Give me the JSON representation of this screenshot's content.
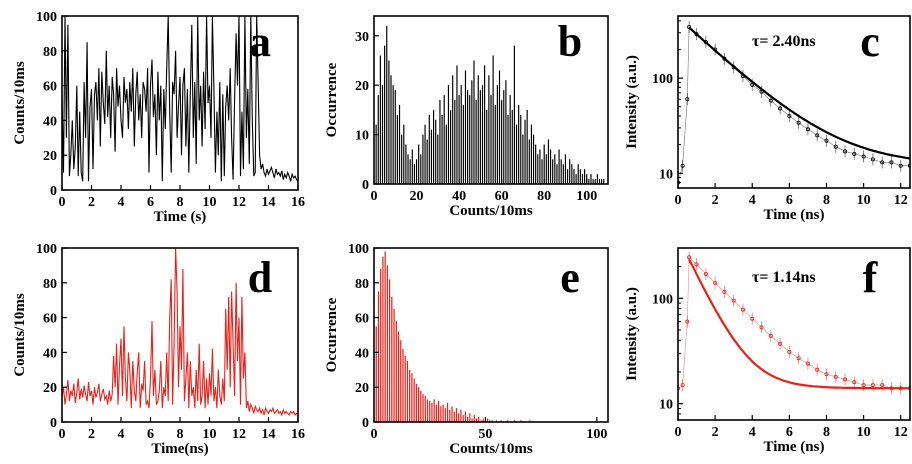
{
  "chart_data": [
    {
      "id": "a",
      "letter": "a",
      "type": "line",
      "color": "#000000",
      "xlabel": "Time (s)",
      "ylabel": "Counts/10ms",
      "xlim": [
        0,
        16
      ],
      "ylim": [
        0,
        100
      ],
      "xticks": [
        0,
        2,
        4,
        6,
        8,
        10,
        12,
        14,
        16
      ],
      "yticks": [
        0,
        20,
        40,
        60,
        80,
        100
      ],
      "x": [
        0,
        0.1,
        0.2,
        0.3,
        0.4,
        0.5,
        0.6,
        0.7,
        0.8,
        0.9,
        1.0,
        1.1,
        1.2,
        1.3,
        1.4,
        1.5,
        1.6,
        1.7,
        1.8,
        1.9,
        2.0,
        2.1,
        2.2,
        2.3,
        2.4,
        2.5,
        2.6,
        2.7,
        2.8,
        2.9,
        3.0,
        3.1,
        3.2,
        3.3,
        3.4,
        3.5,
        3.6,
        3.7,
        3.8,
        3.9,
        4.0,
        4.1,
        4.2,
        4.3,
        4.4,
        4.5,
        4.6,
        4.7,
        4.8,
        4.9,
        5.0,
        5.1,
        5.2,
        5.3,
        5.4,
        5.5,
        5.6,
        5.7,
        5.8,
        5.9,
        6.0,
        6.1,
        6.2,
        6.3,
        6.4,
        6.5,
        6.6,
        6.7,
        6.8,
        6.9,
        7.0,
        7.1,
        7.2,
        7.3,
        7.4,
        7.5,
        7.6,
        7.7,
        7.8,
        7.9,
        8.0,
        8.1,
        8.2,
        8.3,
        8.4,
        8.5,
        8.6,
        8.7,
        8.8,
        8.9,
        9.0,
        9.1,
        9.2,
        9.3,
        9.4,
        9.5,
        9.6,
        9.7,
        9.8,
        9.9,
        10.0,
        10.1,
        10.2,
        10.3,
        10.4,
        10.5,
        10.6,
        10.7,
        10.8,
        10.9,
        11.0,
        11.1,
        11.2,
        11.3,
        11.4,
        11.5,
        11.6,
        11.7,
        11.8,
        11.9,
        12.0,
        12.1,
        12.2,
        12.3,
        12.4,
        12.5,
        12.6,
        12.7,
        12.8,
        12.9,
        13.0,
        13.1,
        13.2,
        13.3,
        13.4,
        13.5,
        13.6,
        13.7,
        13.8,
        13.9,
        14.0,
        14.1,
        14.2,
        14.3,
        14.4,
        14.5,
        14.6,
        14.7,
        14.8,
        14.9,
        15.0,
        15.1,
        15.2,
        15.3,
        15.4,
        15.5,
        15.6,
        15.7,
        15.8,
        15.9,
        16.0
      ],
      "y": [
        55,
        10,
        100,
        30,
        95,
        8,
        20,
        40,
        12,
        25,
        60,
        8,
        45,
        10,
        5,
        62,
        30,
        85,
        5,
        48,
        58,
        12,
        55,
        62,
        40,
        70,
        25,
        68,
        50,
        38,
        80,
        42,
        60,
        30,
        65,
        55,
        22,
        70,
        48,
        60,
        40,
        30,
        65,
        50,
        58,
        35,
        62,
        45,
        70,
        25,
        55,
        68,
        40,
        55,
        30,
        62,
        58,
        45,
        70,
        10,
        60,
        75,
        42,
        55,
        20,
        68,
        40,
        60,
        5,
        58,
        35,
        70,
        100,
        45,
        10,
        62,
        55,
        80,
        30,
        48,
        65,
        20,
        60,
        70,
        25,
        58,
        10,
        55,
        95,
        30,
        62,
        15,
        100,
        40,
        60,
        25,
        68,
        35,
        100,
        50,
        60,
        30,
        100,
        58,
        10,
        45,
        20,
        62,
        5,
        55,
        8,
        48,
        60,
        40,
        70,
        30,
        6,
        52,
        90,
        60,
        100,
        8,
        45,
        12,
        100,
        30,
        58,
        15,
        100,
        40,
        8,
        10,
        100,
        60,
        20,
        12,
        15,
        10,
        8,
        12,
        9,
        11,
        13,
        10,
        7,
        12,
        9,
        10,
        8,
        11,
        6,
        9,
        7,
        10,
        8,
        5,
        9,
        7,
        8,
        6,
        5
      ]
    },
    {
      "id": "b",
      "letter": "b",
      "type": "bar",
      "color": "#000000",
      "xlabel": "Counts/10ms",
      "ylabel": "Occurrence",
      "xlim": [
        0,
        110
      ],
      "ylim": [
        0,
        34
      ],
      "xticks": [
        0,
        20,
        40,
        60,
        80,
        100
      ],
      "yticks": [
        0,
        10,
        20,
        30
      ],
      "x": [
        1,
        2,
        3,
        4,
        5,
        6,
        7,
        8,
        9,
        10,
        11,
        12,
        13,
        14,
        15,
        16,
        17,
        18,
        19,
        20,
        21,
        22,
        23,
        24,
        25,
        26,
        27,
        28,
        29,
        30,
        31,
        32,
        33,
        34,
        35,
        36,
        37,
        38,
        39,
        40,
        41,
        42,
        43,
        44,
        45,
        46,
        47,
        48,
        49,
        50,
        51,
        52,
        53,
        54,
        55,
        56,
        57,
        58,
        59,
        60,
        61,
        62,
        63,
        64,
        65,
        66,
        67,
        68,
        69,
        70,
        71,
        72,
        73,
        74,
        75,
        76,
        77,
        78,
        79,
        80,
        81,
        82,
        83,
        84,
        85,
        86,
        87,
        88,
        89,
        90,
        91,
        92,
        93,
        94,
        95,
        96,
        97,
        98,
        99,
        100,
        101,
        102,
        103,
        104,
        105,
        106,
        107,
        108
      ],
      "values": [
        12,
        18,
        26,
        20,
        28,
        32,
        25,
        22,
        20,
        19,
        14,
        16,
        10,
        12,
        8,
        6,
        5,
        7,
        4,
        5,
        8,
        6,
        10,
        12,
        9,
        14,
        11,
        15,
        13,
        10,
        17,
        14,
        18,
        12,
        20,
        15,
        22,
        17,
        24,
        18,
        20,
        16,
        23,
        19,
        18,
        21,
        25,
        17,
        22,
        19,
        20,
        24,
        15,
        22,
        18,
        26,
        16,
        20,
        23,
        17,
        19,
        21,
        14,
        18,
        15,
        28,
        12,
        16,
        14,
        10,
        13,
        15,
        9,
        12,
        10,
        8,
        6,
        7,
        5,
        8,
        6,
        9,
        7,
        5,
        6,
        4,
        7,
        5,
        4,
        6,
        3,
        5,
        4,
        3,
        2,
        4,
        3,
        2,
        3,
        2,
        1,
        2,
        1,
        1,
        2,
        1,
        1,
        1
      ]
    },
    {
      "id": "c",
      "letter": "c",
      "type": "scatter",
      "color": "#000000",
      "xlabel": "Time (ns)",
      "ylabel": "Intensity (a.u.)",
      "xlim": [
        0,
        12.5
      ],
      "ylim": [
        7,
        450
      ],
      "yscale": "log",
      "xticks": [
        0,
        2,
        4,
        6,
        8,
        10,
        12
      ],
      "yticks": [
        10,
        100
      ],
      "annotation": "τ= 2.40ns",
      "tau": 2.4,
      "fit": {
        "x0": 0.6,
        "amplitude": 340,
        "baseline": 12
      },
      "x": [
        0.0,
        0.25,
        0.5,
        0.6,
        1.0,
        1.5,
        2.0,
        2.5,
        3.0,
        3.5,
        4.0,
        4.5,
        5.0,
        5.5,
        6.0,
        6.5,
        7.0,
        7.5,
        8.0,
        8.5,
        9.0,
        9.5,
        10.0,
        10.5,
        11.0,
        11.5,
        12.0,
        12.5
      ],
      "y": [
        8,
        12,
        60,
        345,
        290,
        240,
        200,
        160,
        130,
        105,
        85,
        72,
        58,
        48,
        40,
        34,
        29,
        25,
        22,
        19,
        17,
        16,
        15,
        14,
        13,
        13,
        12,
        12
      ]
    },
    {
      "id": "d",
      "letter": "d",
      "type": "line",
      "color": "#e8221a",
      "xlabel": "Time(ns)",
      "ylabel": "Counts/10ms",
      "xlim": [
        0,
        16
      ],
      "ylim": [
        0,
        100
      ],
      "xticks": [
        0,
        2,
        4,
        6,
        8,
        10,
        12,
        14,
        16
      ],
      "yticks": [
        0,
        20,
        40,
        60,
        80,
        100
      ],
      "x": [
        0,
        0.1,
        0.2,
        0.3,
        0.4,
        0.5,
        0.6,
        0.7,
        0.8,
        0.9,
        1.0,
        1.1,
        1.2,
        1.3,
        1.4,
        1.5,
        1.6,
        1.7,
        1.8,
        1.9,
        2.0,
        2.1,
        2.2,
        2.3,
        2.4,
        2.5,
        2.6,
        2.7,
        2.8,
        2.9,
        3.0,
        3.1,
        3.2,
        3.3,
        3.4,
        3.5,
        3.6,
        3.7,
        3.8,
        3.9,
        4.0,
        4.1,
        4.2,
        4.3,
        4.4,
        4.5,
        4.6,
        4.7,
        4.8,
        4.9,
        5.0,
        5.1,
        5.2,
        5.3,
        5.4,
        5.5,
        5.6,
        5.7,
        5.8,
        5.9,
        6.0,
        6.1,
        6.2,
        6.3,
        6.4,
        6.5,
        6.6,
        6.7,
        6.8,
        6.9,
        7.0,
        7.1,
        7.2,
        7.3,
        7.4,
        7.5,
        7.6,
        7.7,
        7.8,
        7.9,
        8.0,
        8.1,
        8.2,
        8.3,
        8.4,
        8.5,
        8.6,
        8.7,
        8.8,
        8.9,
        9.0,
        9.1,
        9.2,
        9.3,
        9.4,
        9.5,
        9.6,
        9.7,
        9.8,
        9.9,
        10.0,
        10.1,
        10.2,
        10.3,
        10.4,
        10.5,
        10.6,
        10.7,
        10.8,
        10.9,
        11.0,
        11.1,
        11.2,
        11.3,
        11.4,
        11.5,
        11.6,
        11.7,
        11.8,
        11.9,
        12.0,
        12.1,
        12.2,
        12.3,
        12.4,
        12.5,
        12.6,
        12.7,
        12.8,
        12.9,
        13.0,
        13.1,
        13.2,
        13.3,
        13.4,
        13.5,
        13.6,
        13.7,
        13.8,
        13.9,
        14.0,
        14.1,
        14.2,
        14.3,
        14.4,
        14.5,
        14.6,
        14.7,
        14.8,
        14.9,
        15.0,
        15.1,
        15.2,
        15.3,
        15.4,
        15.5,
        15.6,
        15.7,
        15.8,
        15.9,
        16.0
      ],
      "y": [
        14,
        20,
        10,
        16,
        24,
        12,
        18,
        15,
        22,
        11,
        17,
        25,
        13,
        19,
        14,
        21,
        16,
        12,
        23,
        15,
        18,
        10,
        20,
        14,
        17,
        22,
        12,
        16,
        19,
        13,
        15,
        10,
        18,
        12,
        16,
        38,
        20,
        45,
        10,
        32,
        48,
        15,
        55,
        25,
        12,
        40,
        30,
        8,
        35,
        18,
        12,
        28,
        40,
        8,
        22,
        18,
        35,
        10,
        12,
        8,
        25,
        58,
        15,
        30,
        10,
        12,
        18,
        35,
        8,
        20,
        15,
        40,
        12,
        60,
        82,
        10,
        45,
        100,
        75,
        20,
        55,
        30,
        88,
        12,
        25,
        40,
        8,
        35,
        15,
        20,
        8,
        30,
        12,
        45,
        10,
        15,
        35,
        8,
        25,
        10,
        28,
        15,
        42,
        12,
        20,
        8,
        30,
        15,
        10,
        25,
        12,
        65,
        30,
        72,
        20,
        75,
        45,
        15,
        80,
        35,
        60,
        10,
        72,
        25,
        40,
        8,
        12,
        6,
        10,
        8,
        5,
        9,
        7,
        6,
        8,
        5,
        7,
        4,
        8,
        6,
        5,
        7,
        6,
        8,
        5,
        6,
        7,
        5,
        6,
        4,
        7,
        5,
        6,
        5,
        4,
        6,
        5,
        6,
        4,
        5,
        4
      ]
    },
    {
      "id": "e",
      "letter": "e",
      "type": "bar",
      "color": "#e8221a",
      "xlabel": "Counts/10ms",
      "ylabel": "Occurrence",
      "xlim": [
        0,
        105
      ],
      "ylim": [
        0,
        100
      ],
      "xticks": [
        0,
        50,
        100
      ],
      "yticks": [
        0,
        20,
        40,
        60,
        80,
        100
      ],
      "x": [
        1,
        2,
        3,
        4,
        5,
        6,
        7,
        8,
        9,
        10,
        11,
        12,
        13,
        14,
        15,
        16,
        17,
        18,
        19,
        20,
        21,
        22,
        23,
        24,
        25,
        26,
        27,
        28,
        29,
        30,
        31,
        32,
        33,
        34,
        35,
        36,
        37,
        38,
        39,
        40,
        41,
        42,
        43,
        44,
        45,
        46,
        47,
        48,
        49,
        50,
        51,
        52,
        53,
        54,
        55,
        56,
        57,
        58,
        59,
        60,
        61,
        62,
        63,
        64,
        65,
        66,
        67,
        68,
        69,
        70
      ],
      "values": [
        55,
        75,
        88,
        95,
        98,
        90,
        82,
        72,
        65,
        58,
        52,
        47,
        42,
        38,
        35,
        30,
        28,
        25,
        22,
        20,
        18,
        16,
        15,
        13,
        12,
        11,
        13,
        10,
        12,
        9,
        10,
        8,
        11,
        7,
        9,
        6,
        8,
        5,
        7,
        4,
        6,
        3,
        5,
        2,
        4,
        2,
        3,
        1,
        2,
        1,
        2,
        1,
        1,
        0,
        1,
        0,
        1,
        0,
        0,
        1,
        0,
        0,
        1,
        0,
        0,
        1,
        0,
        0,
        0,
        1
      ]
    },
    {
      "id": "f",
      "letter": "f",
      "type": "scatter",
      "color": "#e8221a",
      "xlabel": "Time (ns)",
      "ylabel": "Intensity (a.u.)",
      "xlim": [
        0,
        12.5
      ],
      "ylim": [
        7,
        300
      ],
      "yscale": "log",
      "xticks": [
        0,
        2,
        4,
        6,
        8,
        10,
        12
      ],
      "yticks": [
        10,
        100
      ],
      "annotation": "τ= 1.14ns",
      "tau": 1.14,
      "fit": {
        "x0": 0.6,
        "amplitude": 235,
        "baseline": 14
      },
      "x": [
        0.0,
        0.25,
        0.5,
        0.6,
        1.0,
        1.5,
        2.0,
        2.5,
        3.0,
        3.5,
        4.0,
        4.5,
        5.0,
        5.5,
        6.0,
        6.5,
        7.0,
        7.5,
        8.0,
        8.5,
        9.0,
        9.5,
        10.0,
        10.5,
        11.0,
        11.5,
        12.0,
        12.5
      ],
      "y": [
        14,
        15,
        60,
        245,
        210,
        170,
        140,
        115,
        95,
        78,
        64,
        53,
        44,
        37,
        31,
        27,
        24,
        21,
        19,
        18,
        17,
        16,
        15,
        15,
        15,
        14,
        14,
        14
      ]
    }
  ]
}
